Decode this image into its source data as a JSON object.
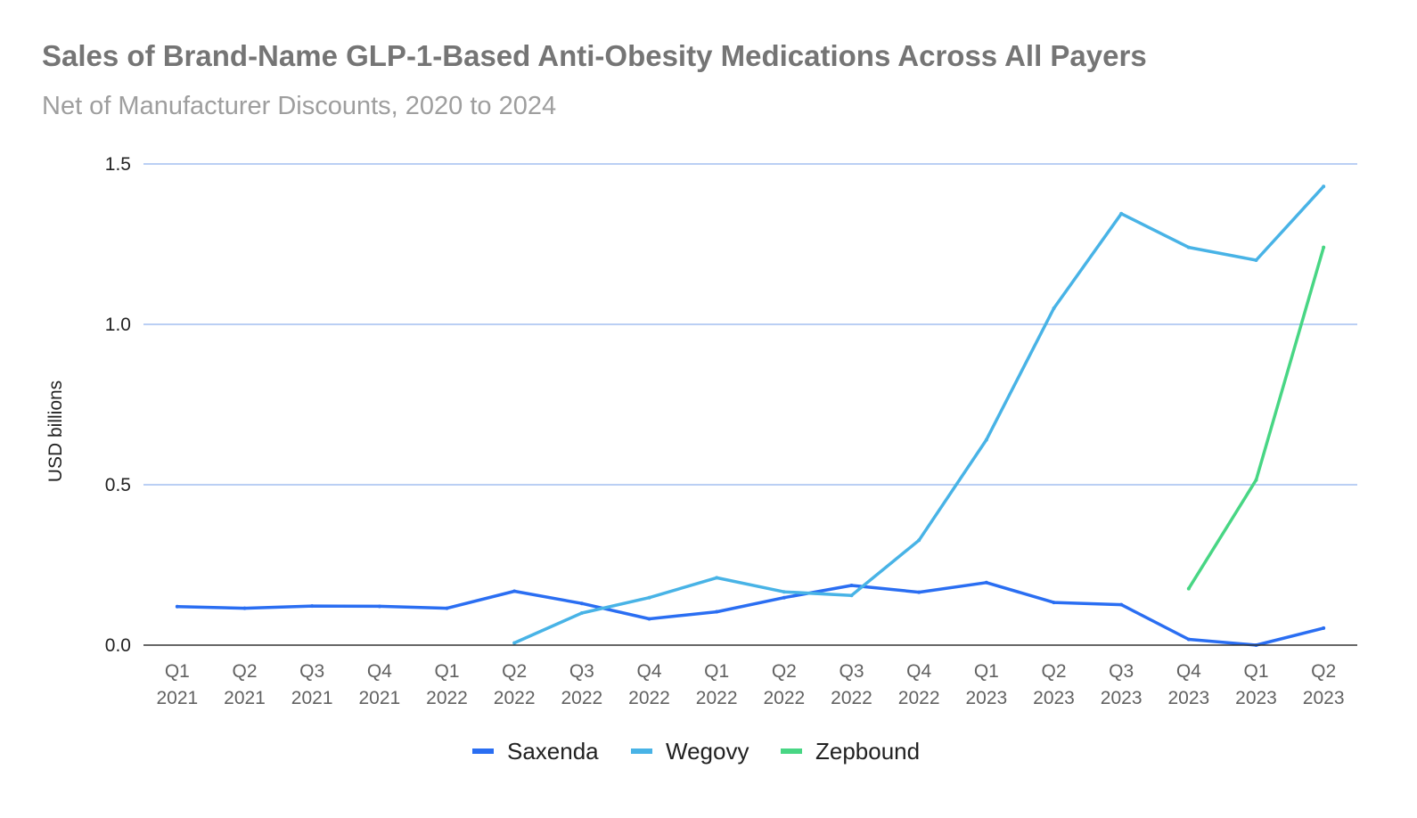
{
  "title": "Sales of Brand-Name GLP-1-Based Anti-Obesity Medications Across All Payers",
  "subtitle": "Net of Manufacturer Discounts, 2020 to 2024",
  "chart_data": {
    "type": "line",
    "title": "Sales of Brand-Name GLP-1-Based Anti-Obesity Medications Across All Payers",
    "subtitle": "Net of Manufacturer Discounts, 2020 to 2024",
    "xlabel": "",
    "ylabel": "USD billions",
    "ylim": [
      0,
      1.5
    ],
    "yticks": [
      "0.0",
      "0.5",
      "1.0",
      "1.5"
    ],
    "grid": true,
    "legend_position": "bottom",
    "categories": [
      [
        "Q1",
        "2021"
      ],
      [
        "Q2",
        "2021"
      ],
      [
        "Q3",
        "2021"
      ],
      [
        "Q4",
        "2021"
      ],
      [
        "Q1",
        "2022"
      ],
      [
        "Q2",
        "2022"
      ],
      [
        "Q3",
        "2022"
      ],
      [
        "Q4",
        "2022"
      ],
      [
        "Q1",
        "2022"
      ],
      [
        "Q2",
        "2022"
      ],
      [
        "Q3",
        "2022"
      ],
      [
        "Q4",
        "2022"
      ],
      [
        "Q1",
        "2023"
      ],
      [
        "Q2",
        "2023"
      ],
      [
        "Q3",
        "2023"
      ],
      [
        "Q4",
        "2023"
      ],
      [
        "Q1",
        "2023"
      ],
      [
        "Q2",
        "2023"
      ]
    ],
    "series": [
      {
        "name": "Saxenda",
        "color": "#2a6ef2",
        "values": [
          0.12,
          0.115,
          0.122,
          0.121,
          0.115,
          0.168,
          0.13,
          0.082,
          0.104,
          0.148,
          0.186,
          0.165,
          0.195,
          0.133,
          0.126,
          0.018,
          0.0,
          0.053
        ]
      },
      {
        "name": "Wegovy",
        "color": "#48b3e6",
        "values": [
          null,
          null,
          null,
          null,
          null,
          0.007,
          0.1,
          0.148,
          0.21,
          0.166,
          0.155,
          0.327,
          0.64,
          1.05,
          1.345,
          1.24,
          1.2,
          1.43
        ]
      },
      {
        "name": "Zepbound",
        "color": "#48d684",
        "values": [
          null,
          null,
          null,
          null,
          null,
          null,
          null,
          null,
          null,
          null,
          null,
          null,
          null,
          null,
          null,
          0.176,
          0.515,
          1.24
        ]
      }
    ]
  }
}
